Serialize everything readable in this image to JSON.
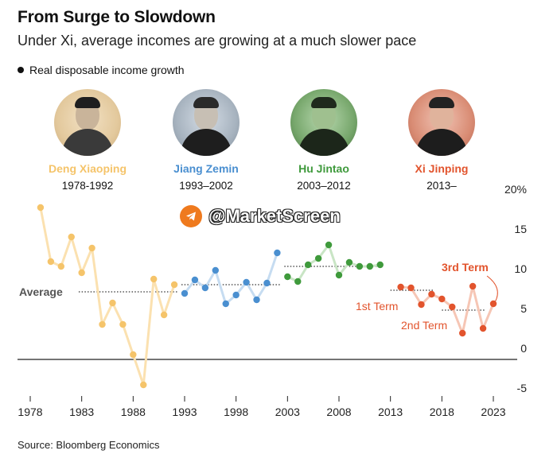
{
  "title": "From Surge to Slowdown",
  "subtitle": "Under Xi, average incomes are growing at a much slower pace",
  "legend_label": "Real disposable income growth",
  "source": "Source: Bloomberg Economics",
  "watermark": "@MarketScreen",
  "leaders": [
    {
      "name": "Deng Xiaoping",
      "term": "1978-1992",
      "color": "#f5c46a"
    },
    {
      "name": "Jiang Zemin",
      "term": "1993–2002",
      "color": "#4a8fd0"
    },
    {
      "name": "Hu Jintao",
      "term": "2003–2012",
      "color": "#3f9a3c"
    },
    {
      "name": "Xi Jinping",
      "term": "2013–",
      "color": "#e2542d"
    }
  ],
  "chart_data": {
    "type": "line",
    "x_ticks": [
      "1978",
      "1983",
      "1988",
      "1993",
      "1998",
      "2003",
      "2008",
      "2013",
      "2018",
      "2023"
    ],
    "y_ticks": [
      "20%",
      "15",
      "10",
      "5",
      "0",
      "-5"
    ],
    "ylim": [
      -5,
      20
    ],
    "xlim": [
      1978,
      2023
    ],
    "series": [
      {
        "name": "Deng Xiaoping",
        "color": "#f5c46a",
        "line_color": "#fbe1b0",
        "x": [
          1979,
          1980,
          1981,
          1982,
          1983,
          1984,
          1985,
          1986,
          1987,
          1988,
          1989,
          1990,
          1991,
          1992
        ],
        "y": [
          17.7,
          10.9,
          10.3,
          14.0,
          9.5,
          12.6,
          3.0,
          5.7,
          3.0,
          -0.8,
          -4.6,
          8.7,
          4.2,
          8.0
        ],
        "average": 7.1
      },
      {
        "name": "Jiang Zemin",
        "color": "#4a8fd0",
        "line_color": "#c6dcf1",
        "x": [
          1993,
          1994,
          1995,
          1996,
          1997,
          1998,
          1999,
          2000,
          2001,
          2002
        ],
        "y": [
          6.9,
          8.6,
          7.6,
          9.8,
          5.6,
          6.7,
          8.3,
          6.1,
          8.2,
          12.0
        ],
        "average": 8.0
      },
      {
        "name": "Hu Jintao",
        "color": "#3f9a3c",
        "line_color": "#c9e5c5",
        "x": [
          2003,
          2004,
          2005,
          2006,
          2007,
          2008,
          2009,
          2010,
          2011,
          2012
        ],
        "y": [
          9.0,
          8.4,
          10.5,
          11.3,
          13.0,
          9.2,
          10.8,
          10.3,
          10.3,
          10.5
        ],
        "average": 10.3
      },
      {
        "name": "Xi Jinping",
        "color": "#e2542d",
        "line_color": "#f6c6b5",
        "x": [
          2014,
          2015,
          2016,
          2017,
          2018,
          2019,
          2020,
          2021,
          2022,
          2023
        ],
        "y": [
          7.7,
          7.6,
          5.5,
          6.8,
          6.2,
          5.2,
          1.9,
          7.8,
          2.5,
          5.6
        ],
        "term_averages": [
          {
            "label": "1st Term",
            "x_range": [
              2013,
              2017
            ],
            "value": 7.3
          },
          {
            "label": "2nd Term",
            "x_range": [
              2018,
              2022
            ],
            "value": 4.8
          }
        ],
        "third_term_label": "3rd Term"
      }
    ],
    "overall_average_label": "Average",
    "zero_line": true
  }
}
